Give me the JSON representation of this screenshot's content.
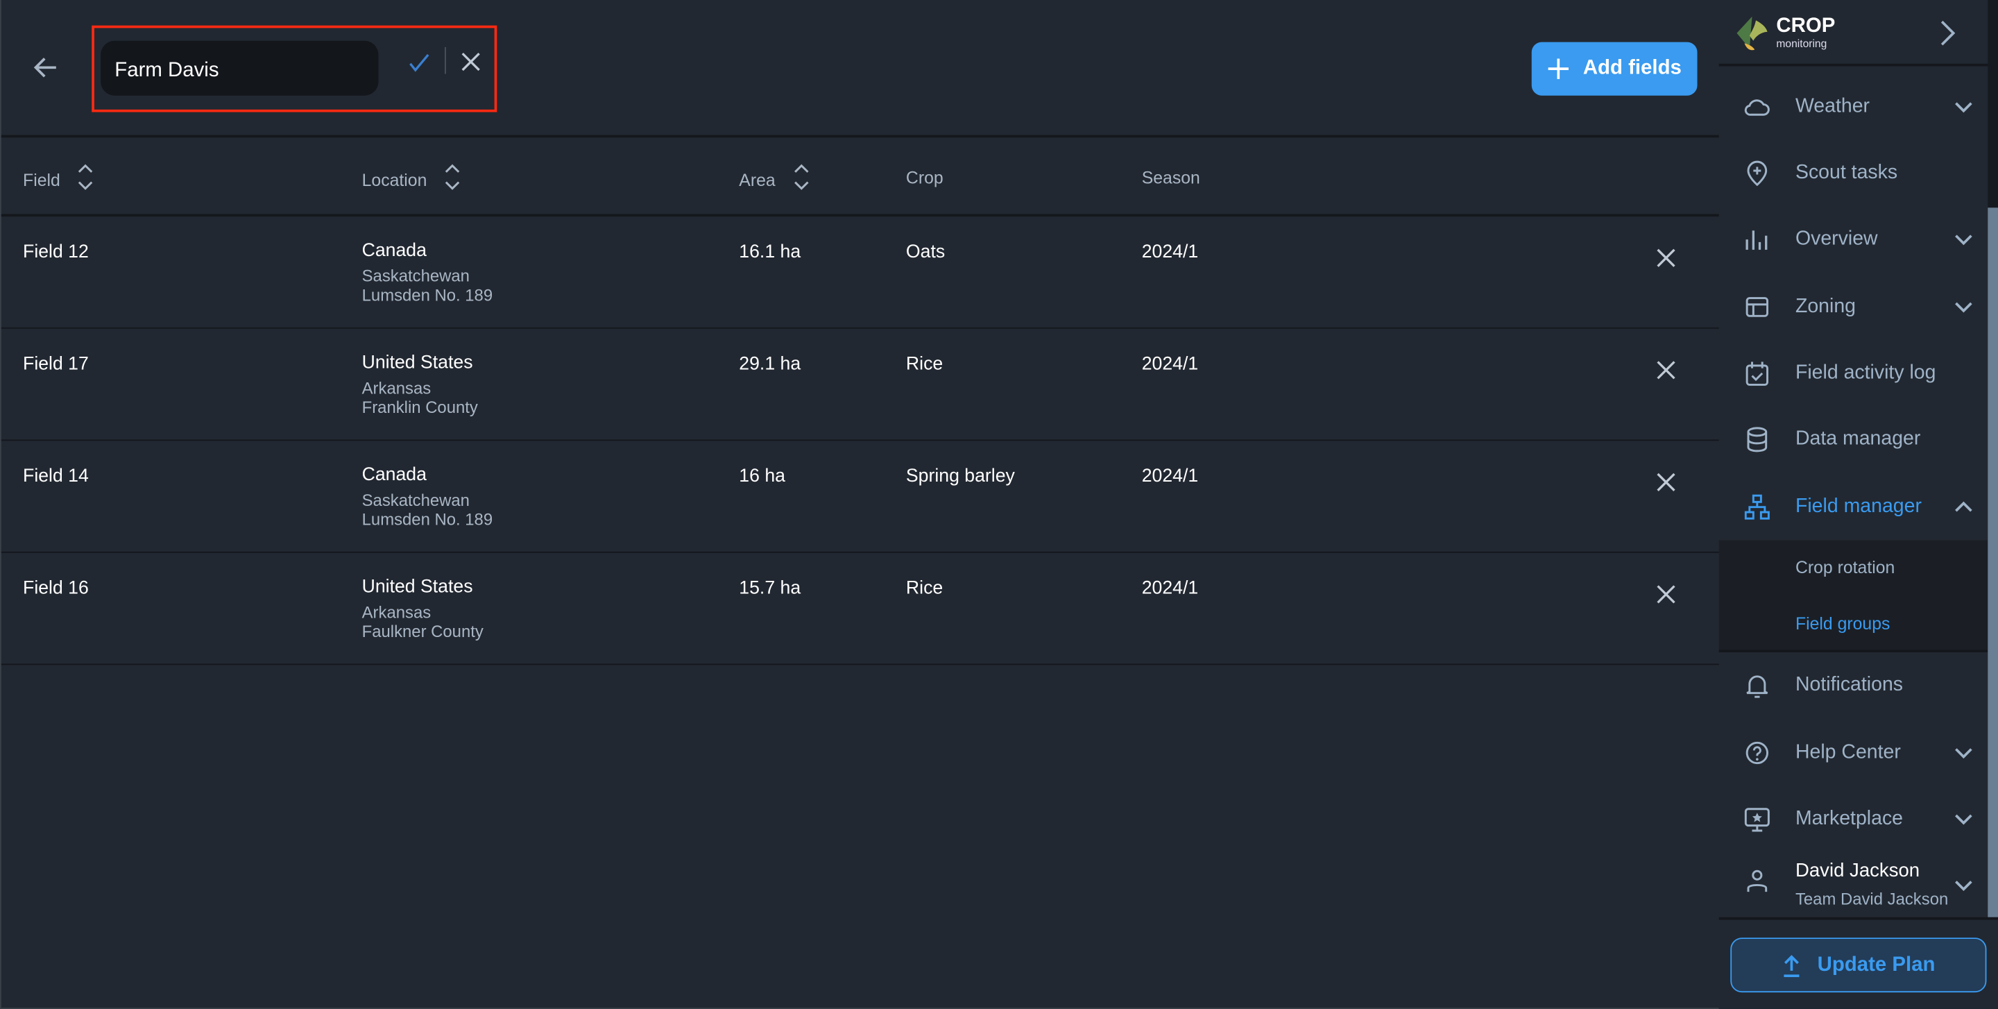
{
  "header": {
    "back_icon": "arrow-left-icon",
    "group_name_value": "Farm Davis",
    "confirm_icon": "check-icon",
    "cancel_icon": "close-icon",
    "add_fields_label": "Add fields",
    "accent": "#3a9bf0",
    "highlight": "#ff2a12"
  },
  "table": {
    "columns": [
      "Field",
      "Location",
      "Area",
      "Crop",
      "Season"
    ],
    "rows": [
      {
        "field": "Field 12",
        "country": "Canada",
        "region": "Saskatchewan",
        "district": "Lumsden No. 189",
        "area": "16.1 ha",
        "crop": "Oats",
        "season": "2024/1"
      },
      {
        "field": "Field 17",
        "country": "United States",
        "region": "Arkansas",
        "district": "Franklin County",
        "area": "29.1 ha",
        "crop": "Rice",
        "season": "2024/1"
      },
      {
        "field": "Field 14",
        "country": "Canada",
        "region": "Saskatchewan",
        "district": "Lumsden No. 189",
        "area": "16 ha",
        "crop": "Spring barley",
        "season": "2024/1"
      },
      {
        "field": "Field 16",
        "country": "United States",
        "region": "Arkansas",
        "district": "Faulkner County",
        "area": "15.7 ha",
        "crop": "Rice",
        "season": "2024/1"
      }
    ]
  },
  "sidebar": {
    "logo": {
      "title": "CROP",
      "subtitle": "monitoring"
    },
    "items": [
      {
        "label": "Weather",
        "icon": "cloud-icon"
      },
      {
        "label": "Scout tasks",
        "icon": "map-pin-plus-icon"
      },
      {
        "label": "Overview",
        "icon": "bar-chart-icon"
      },
      {
        "label": "Zoning",
        "icon": "layout-icon"
      },
      {
        "label": "Field activity log",
        "icon": "calendar-check-icon"
      },
      {
        "label": "Data manager",
        "icon": "database-icon"
      },
      {
        "label": "Field manager",
        "icon": "hierarchy-icon"
      },
      {
        "label": "Notifications",
        "icon": "bell-icon"
      },
      {
        "label": "Help Center",
        "icon": "help-circle-icon"
      },
      {
        "label": "Marketplace",
        "icon": "monitor-star-icon"
      }
    ],
    "subitems": [
      "Crop rotation",
      "Field groups"
    ],
    "user": {
      "name": "David Jackson",
      "team": "Team David Jackson"
    },
    "update_plan_label": "Update Plan"
  }
}
